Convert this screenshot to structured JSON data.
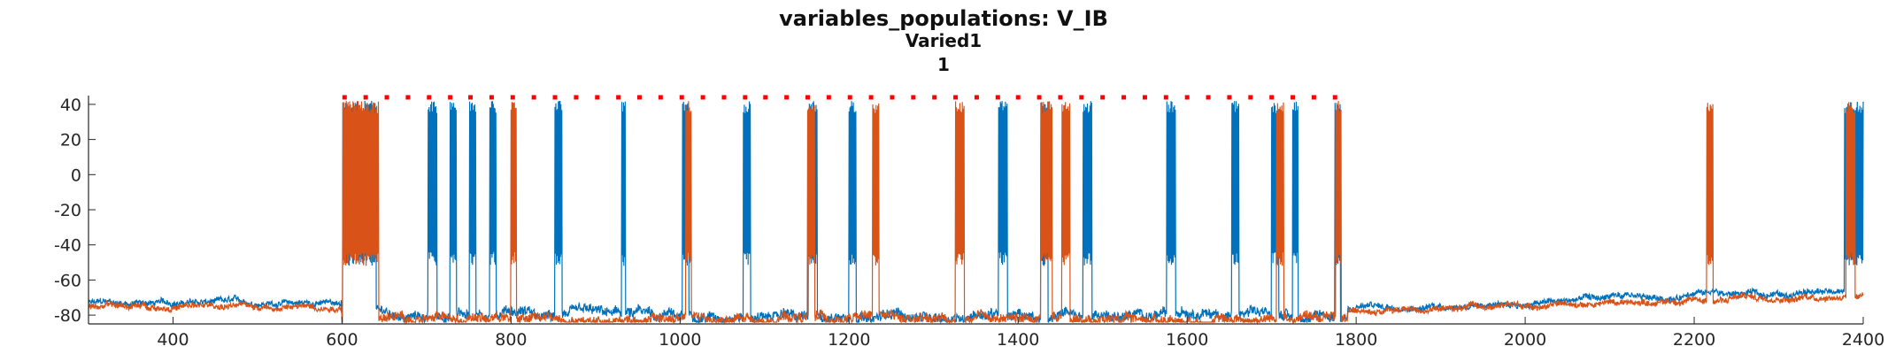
{
  "chart_data": {
    "type": "line",
    "title": "variables_populations: V_IB",
    "subtitle": "Varied1",
    "subtitle2": "1",
    "xlabel": "",
    "ylabel": "",
    "xlim": [
      300,
      2400
    ],
    "ylim": [
      -85,
      45
    ],
    "xticks": [
      400,
      600,
      800,
      1000,
      1200,
      1400,
      1600,
      1800,
      2000,
      2200,
      2400
    ],
    "yticks": [
      40,
      20,
      0,
      -20,
      -40,
      -60,
      -80
    ],
    "grid": false,
    "legend": "none",
    "colors": {
      "series1": "#0072BD",
      "series2": "#D95319",
      "markers": "#FF0000",
      "axis": "#262626"
    },
    "series": [
      {
        "bursts": [
          {
            "start": 601,
            "end": 640,
            "peak": 40
          },
          {
            "start": 702,
            "end": 712,
            "peak": 40
          },
          {
            "start": 728,
            "end": 735,
            "peak": 40
          },
          {
            "start": 751,
            "end": 758,
            "peak": 40
          },
          {
            "start": 775,
            "end": 782,
            "peak": 40
          },
          {
            "start": 852,
            "end": 860,
            "peak": 40
          },
          {
            "start": 931,
            "end": 935,
            "peak": 40
          },
          {
            "start": 1003,
            "end": 1010,
            "peak": 40
          },
          {
            "start": 1075,
            "end": 1083,
            "peak": 40
          },
          {
            "start": 1152,
            "end": 1162,
            "peak": 40
          },
          {
            "start": 1200,
            "end": 1208,
            "peak": 40
          },
          {
            "start": 1377,
            "end": 1387,
            "peak": 40
          },
          {
            "start": 1427,
            "end": 1435,
            "peak": 40
          },
          {
            "start": 1477,
            "end": 1487,
            "peak": 40
          },
          {
            "start": 1576,
            "end": 1586,
            "peak": 40
          },
          {
            "start": 1653,
            "end": 1661,
            "peak": 40
          },
          {
            "start": 1700,
            "end": 1708,
            "peak": 40
          },
          {
            "start": 1725,
            "end": 1731,
            "peak": 40
          },
          {
            "start": 1775,
            "end": 1781,
            "peak": 40
          },
          {
            "start": 2378,
            "end": 2400,
            "peak": 44
          }
        ]
      },
      {
        "bursts": [
          {
            "start": 601,
            "end": 643,
            "peak": 40
          },
          {
            "start": 800,
            "end": 806,
            "peak": 40
          },
          {
            "start": 1007,
            "end": 1013,
            "peak": 40
          },
          {
            "start": 1151,
            "end": 1159,
            "peak": 40
          },
          {
            "start": 1228,
            "end": 1235,
            "peak": 40
          },
          {
            "start": 1326,
            "end": 1336,
            "peak": 40
          },
          {
            "start": 1427,
            "end": 1440,
            "peak": 40
          },
          {
            "start": 1452,
            "end": 1461,
            "peak": 40
          },
          {
            "start": 1706,
            "end": 1714,
            "peak": 40
          },
          {
            "start": 1776,
            "end": 1782,
            "peak": 42
          },
          {
            "start": 2215,
            "end": 2222,
            "peak": 42
          },
          {
            "start": 2380,
            "end": 2390,
            "peak": 40
          }
        ]
      }
    ],
    "spike_markers": {
      "y": 44,
      "x": [
        603,
        628,
        653,
        678,
        703,
        728,
        752,
        777,
        802,
        827,
        852,
        877,
        902,
        927,
        952,
        977,
        1002,
        1027,
        1052,
        1077,
        1101,
        1126,
        1151,
        1176,
        1201,
        1226,
        1251,
        1276,
        1301,
        1326,
        1351,
        1376,
        1400,
        1425,
        1450,
        1475,
        1500,
        1525,
        1550,
        1575,
        1600,
        1625,
        1650,
        1675,
        1700,
        1725,
        1750,
        1775
      ]
    }
  }
}
